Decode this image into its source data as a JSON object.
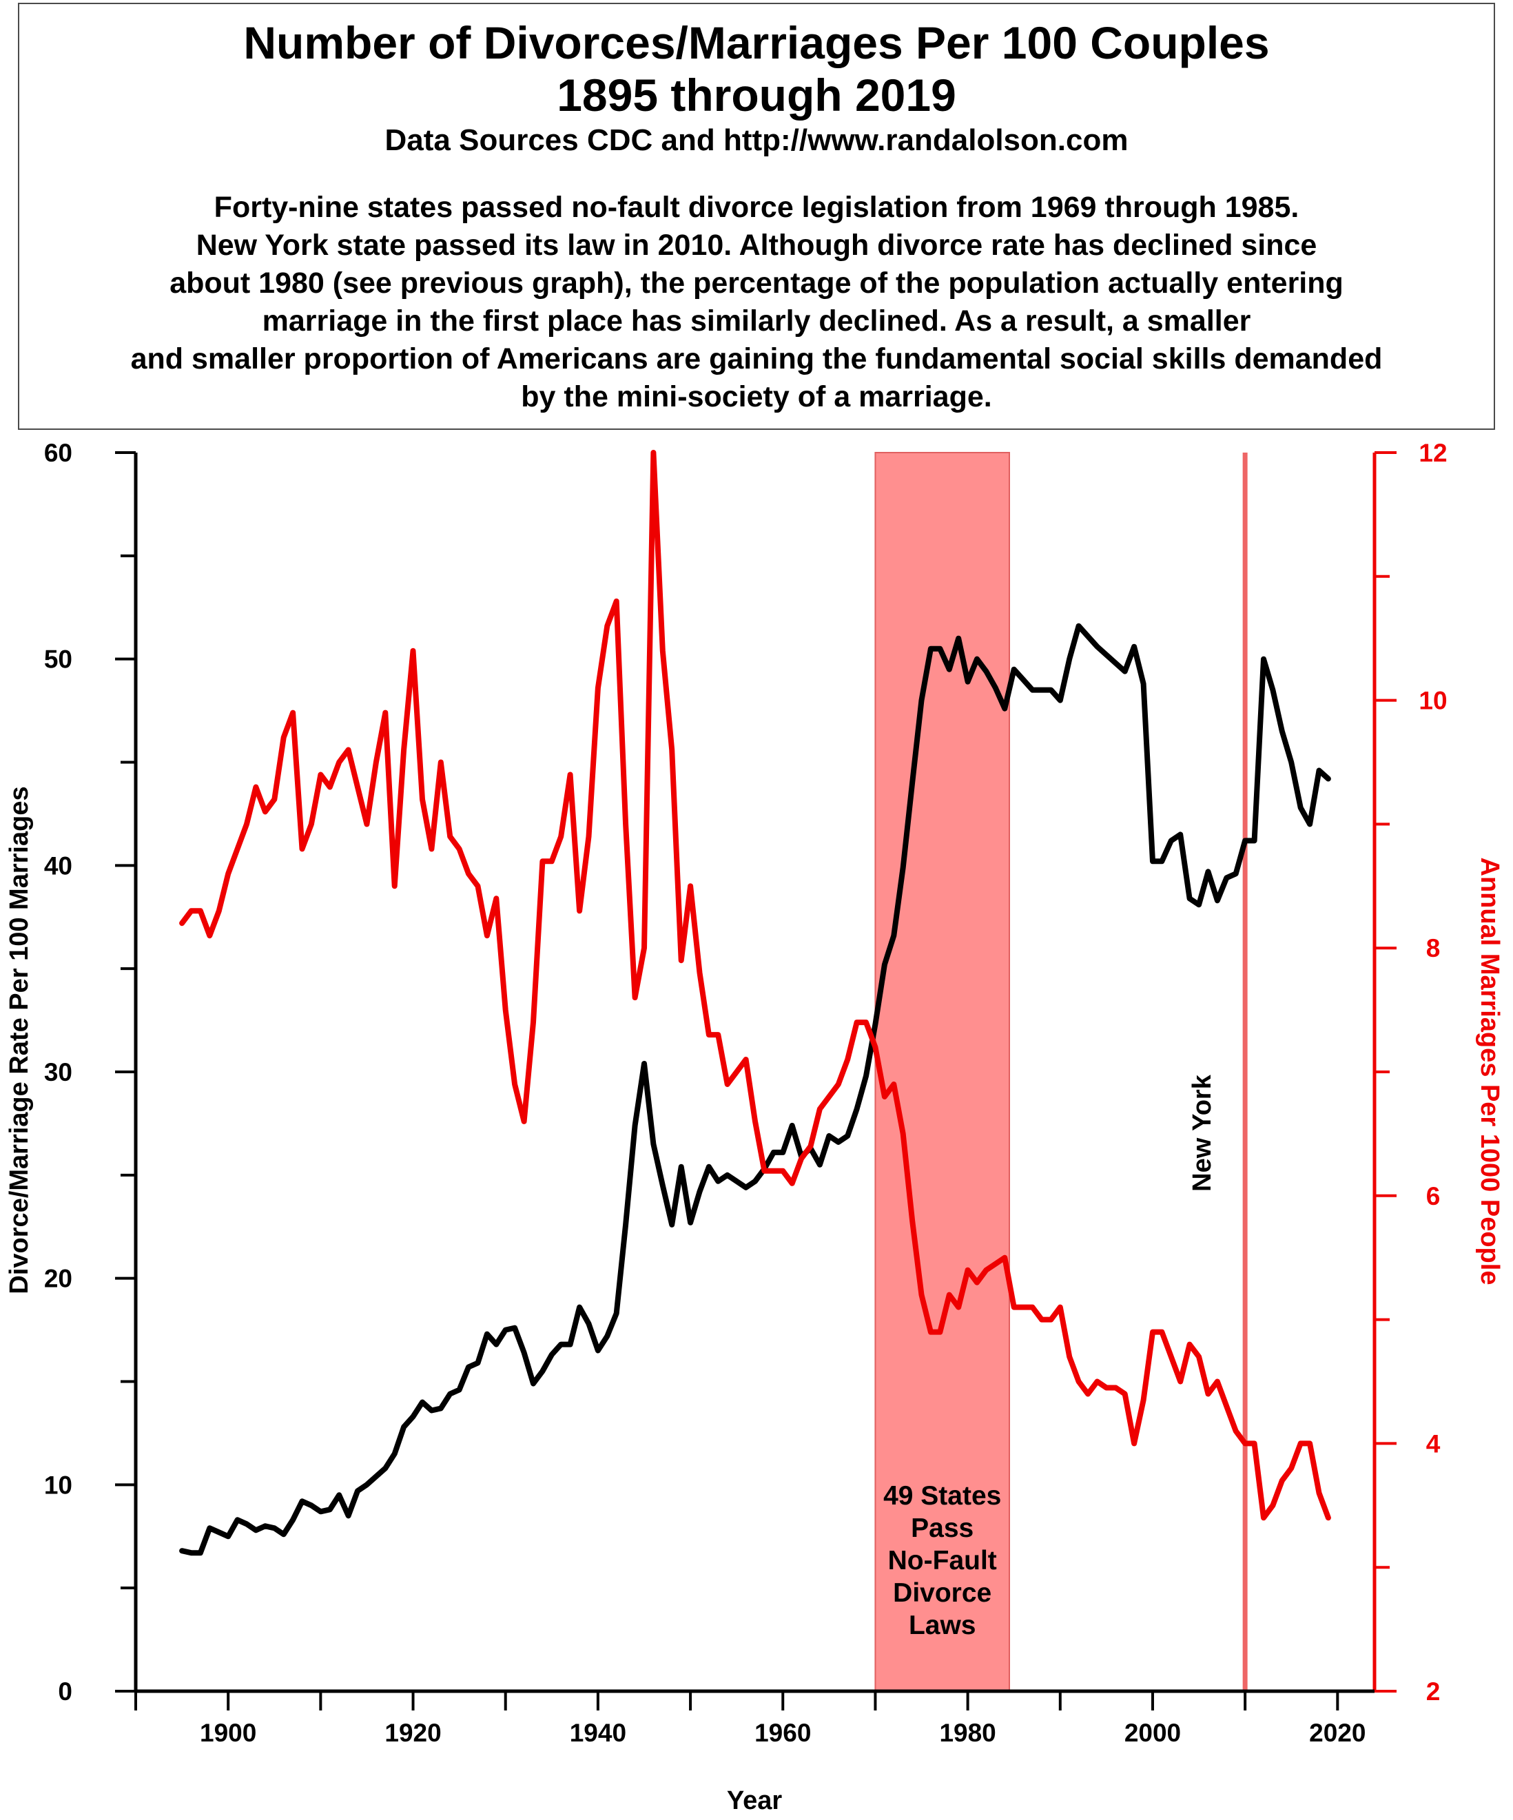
{
  "title_lines": [
    "Number of Divorces/Marriages Per 100 Couples",
    "1895 through 2019"
  ],
  "subtitle": "Data Sources CDC and http://www.randalolson.com",
  "note_lines": [
    "Forty-nine states passed no-fault divorce legislation from 1969 through 1985.",
    "New York state passed its law in 2010.  Although divorce rate has declined since",
    "about 1980 (see previous graph), the percentage of the population actually entering",
    "marriage in the first place has similarly declined.  As a result, a smaller",
    "and smaller proportion of Americans are gaining the fundamental social skills demanded",
    "by the mini-society of a marriage."
  ],
  "colors": {
    "ratio": "#000000",
    "marriage": "#ee0000",
    "band": "#ff8f8f",
    "ny_line": "#ee6666"
  },
  "chart_data": {
    "type": "line",
    "xlabel": "Year",
    "ylabel_left": "Divorce/Marriage Rate Per 100 Marriages",
    "ylabel_right": "Annual Marriages Per 1000 People",
    "xlim": [
      1890,
      2024
    ],
    "ylim_left": [
      0,
      60
    ],
    "ylim_right": [
      2,
      12
    ],
    "x_ticks": [
      1900,
      1920,
      1940,
      1960,
      1980,
      2000,
      2020
    ],
    "y_left_ticks": [
      0,
      10,
      20,
      30,
      40,
      50,
      60
    ],
    "y_right_ticks": [
      2,
      4,
      6,
      8,
      10,
      12
    ],
    "grid": false,
    "series": [
      {
        "axis": "left",
        "color": "#000000",
        "x": [
          1895,
          1896,
          1897,
          1898,
          1899,
          1900,
          1901,
          1902,
          1903,
          1904,
          1905,
          1906,
          1907,
          1908,
          1909,
          1910,
          1911,
          1912,
          1913,
          1914,
          1915,
          1916,
          1917,
          1918,
          1919,
          1920,
          1921,
          1922,
          1923,
          1924,
          1925,
          1926,
          1927,
          1928,
          1929,
          1930,
          1931,
          1932,
          1933,
          1934,
          1935,
          1936,
          1937,
          1938,
          1939,
          1940,
          1941,
          1942,
          1943,
          1944,
          1945,
          1946,
          1947,
          1948,
          1949,
          1950,
          1951,
          1952,
          1953,
          1954,
          1955,
          1956,
          1957,
          1958,
          1959,
          1960,
          1961,
          1962,
          1963,
          1964,
          1965,
          1966,
          1967,
          1968,
          1969,
          1970,
          1971,
          1972,
          1973,
          1974,
          1975,
          1976,
          1977,
          1978,
          1979,
          1980,
          1981,
          1982,
          1983,
          1984,
          1985,
          1986,
          1987,
          1988,
          1989,
          1990,
          1991,
          1992,
          1993,
          1994,
          1995,
          1996,
          1997,
          1998,
          1999,
          2000,
          2001,
          2002,
          2003,
          2004,
          2005,
          2006,
          2007,
          2008,
          2009,
          2010,
          2011,
          2012,
          2013,
          2014,
          2015,
          2016,
          2017,
          2018,
          2019
        ],
        "values": [
          6.8,
          6.7,
          6.7,
          7.9,
          7.7,
          7.5,
          8.3,
          8.1,
          7.8,
          8.0,
          7.9,
          7.6,
          8.3,
          9.2,
          9.0,
          8.7,
          8.8,
          9.5,
          8.5,
          9.7,
          10.0,
          10.4,
          10.8,
          11.5,
          12.8,
          13.3,
          14.0,
          13.6,
          13.7,
          14.4,
          14.6,
          15.7,
          15.9,
          17.3,
          16.8,
          17.5,
          17.6,
          16.4,
          14.9,
          15.5,
          16.3,
          16.8,
          16.8,
          18.6,
          17.8,
          16.5,
          17.2,
          18.3,
          22.6,
          27.4,
          30.4,
          26.5,
          24.5,
          22.6,
          25.4,
          22.7,
          24.2,
          25.4,
          24.7,
          25.0,
          24.7,
          24.4,
          24.7,
          25.3,
          26.1,
          26.1,
          27.4,
          25.9,
          26.3,
          25.5,
          26.9,
          26.6,
          26.9,
          28.2,
          29.8,
          32.3,
          35.2,
          36.6,
          39.9,
          44.0,
          48.0,
          50.5,
          50.5,
          49.5,
          51.0,
          48.9,
          50.0,
          49.4,
          48.6,
          47.6,
          49.5,
          49.0,
          48.5,
          48.5,
          48.5,
          48.0,
          50.0,
          51.6,
          51.1,
          50.6,
          50.2,
          49.8,
          49.4,
          50.6,
          48.8,
          40.2,
          40.2,
          41.2,
          41.5,
          38.4,
          38.1,
          39.7,
          38.3,
          39.4,
          39.6,
          41.2,
          41.2,
          50.0,
          48.5,
          46.5,
          45.0,
          42.8,
          42.0,
          44.6,
          44.2
        ]
      },
      {
        "axis": "right",
        "color": "#ee0000",
        "x": [
          1895,
          1896,
          1897,
          1898,
          1899,
          1900,
          1901,
          1902,
          1903,
          1904,
          1905,
          1906,
          1907,
          1908,
          1909,
          1910,
          1911,
          1912,
          1913,
          1914,
          1915,
          1916,
          1917,
          1918,
          1919,
          1920,
          1921,
          1922,
          1923,
          1924,
          1925,
          1926,
          1927,
          1928,
          1929,
          1930,
          1931,
          1932,
          1933,
          1934,
          1935,
          1936,
          1937,
          1938,
          1939,
          1940,
          1941,
          1942,
          1943,
          1944,
          1945,
          1946,
          1947,
          1948,
          1949,
          1950,
          1951,
          1952,
          1953,
          1954,
          1955,
          1956,
          1957,
          1958,
          1959,
          1960,
          1961,
          1962,
          1963,
          1964,
          1965,
          1966,
          1967,
          1968,
          1969,
          1970,
          1971,
          1972,
          1973,
          1974,
          1975,
          1976,
          1977,
          1978,
          1979,
          1980,
          1981,
          1982,
          1983,
          1984,
          1985,
          1986,
          1987,
          1988,
          1989,
          1990,
          1991,
          1992,
          1993,
          1994,
          1995,
          1996,
          1997,
          1998,
          1999,
          2000,
          2001,
          2002,
          2003,
          2004,
          2005,
          2006,
          2007,
          2008,
          2009,
          2010,
          2011,
          2012,
          2013,
          2014,
          2015,
          2016,
          2017,
          2018,
          2019
        ],
        "values": [
          8.2,
          8.3,
          8.3,
          8.1,
          8.3,
          8.6,
          8.8,
          9.0,
          9.3,
          9.1,
          9.2,
          9.7,
          9.9,
          8.8,
          9.0,
          9.4,
          9.3,
          9.5,
          9.6,
          9.3,
          9.0,
          9.5,
          9.9,
          8.5,
          9.6,
          10.4,
          9.2,
          8.8,
          9.5,
          8.9,
          8.8,
          8.6,
          8.5,
          8.1,
          8.4,
          7.5,
          6.9,
          6.6,
          7.4,
          8.7,
          8.7,
          8.9,
          9.4,
          8.3,
          8.9,
          10.1,
          10.6,
          10.8,
          9.0,
          7.6,
          8.0,
          12.0,
          10.4,
          9.6,
          7.9,
          8.5,
          7.8,
          7.3,
          7.3,
          6.9,
          7.0,
          7.1,
          6.6,
          6.2,
          6.2,
          6.2,
          6.1,
          6.3,
          6.4,
          6.7,
          6.8,
          6.9,
          7.1,
          7.4,
          7.4,
          7.2,
          6.8,
          6.9,
          6.5,
          5.8,
          5.2,
          4.9,
          4.9,
          5.2,
          5.1,
          5.4,
          5.3,
          5.4,
          5.45,
          5.5,
          5.1,
          5.1,
          5.1,
          5.0,
          5.0,
          5.1,
          4.7,
          4.5,
          4.4,
          4.5,
          4.45,
          4.45,
          4.4,
          4.0,
          4.35,
          4.9,
          4.9,
          4.7,
          4.5,
          4.8,
          4.7,
          4.4,
          4.5,
          4.3,
          4.1,
          4.0,
          4.0,
          3.4,
          3.5,
          3.7,
          3.8,
          4.0,
          4.0,
          3.6,
          3.4
        ]
      }
    ],
    "annotations": [
      {
        "type": "band",
        "x_from": 1970,
        "x_to": 1984.5,
        "lines": [
          "49 States",
          "Pass",
          "No-Fault",
          "Divorce",
          "Laws"
        ]
      },
      {
        "type": "vline",
        "x": 2010,
        "label": "New York"
      }
    ]
  }
}
